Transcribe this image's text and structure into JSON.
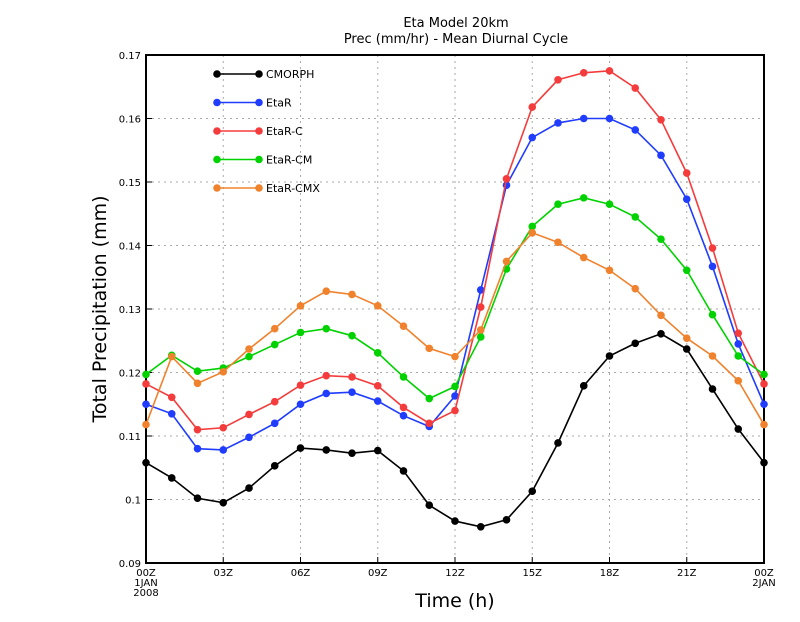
{
  "chart_data": {
    "type": "line",
    "title": "Eta Model 20km",
    "subtitle": "Prec (mm/hr) - Mean Diurnal Cycle",
    "xlabel": "Time (h)",
    "ylabel": "Total Precipitation (mm)",
    "x": [
      0,
      1,
      2,
      3,
      4,
      5,
      6,
      7,
      8,
      9,
      10,
      11,
      12,
      13,
      14,
      15,
      16,
      17,
      18,
      19,
      20,
      21,
      22,
      23,
      24
    ],
    "xlim": [
      0,
      24
    ],
    "ylim": [
      0.09,
      0.17
    ],
    "x_ticks": [
      {
        "value": 0,
        "label": "00Z",
        "sub1": "1JAN",
        "sub2": "2008"
      },
      {
        "value": 3,
        "label": "03Z"
      },
      {
        "value": 6,
        "label": "06Z"
      },
      {
        "value": 9,
        "label": "09Z"
      },
      {
        "value": 12,
        "label": "12Z"
      },
      {
        "value": 15,
        "label": "15Z"
      },
      {
        "value": 18,
        "label": "18Z"
      },
      {
        "value": 21,
        "label": "21Z"
      },
      {
        "value": 24,
        "label": "00Z",
        "sub1": "2JAN"
      }
    ],
    "y_ticks": [
      "0.09",
      "0.1",
      "0.11",
      "0.12",
      "0.13",
      "0.14",
      "0.15",
      "0.16",
      "0.17"
    ],
    "grid": true,
    "legend_position": "top-left",
    "series": [
      {
        "name": "CMORPH",
        "color": "#000000",
        "values": [
          0.1058,
          0.1034,
          0.1002,
          0.0995,
          0.1018,
          0.1053,
          0.1081,
          0.1078,
          0.1073,
          0.1077,
          0.1045,
          0.0991,
          0.0966,
          0.0957,
          0.0968,
          0.1013,
          0.1089,
          0.1179,
          0.1226,
          0.1246,
          0.1261,
          0.1237,
          0.1174,
          0.1111,
          0.1058
        ]
      },
      {
        "name": "EtaR",
        "color": "#1f3cff",
        "values": [
          0.115,
          0.1135,
          0.108,
          0.1078,
          0.1098,
          0.112,
          0.115,
          0.1167,
          0.1169,
          0.1155,
          0.1132,
          0.1115,
          0.1163,
          0.133,
          0.1495,
          0.157,
          0.1593,
          0.16,
          0.16,
          0.1582,
          0.1542,
          0.1473,
          0.1367,
          0.1245,
          0.115
        ]
      },
      {
        "name": "EtaR-C",
        "color": "#f53c3c",
        "values": [
          0.1182,
          0.1161,
          0.111,
          0.1113,
          0.1134,
          0.1154,
          0.118,
          0.1195,
          0.1193,
          0.1179,
          0.1145,
          0.112,
          0.114,
          0.1303,
          0.1505,
          0.1618,
          0.1661,
          0.1672,
          0.1675,
          0.1648,
          0.1598,
          0.1514,
          0.1396,
          0.1262,
          0.1182
        ]
      },
      {
        "name": "EtaR-CM",
        "color": "#00d200",
        "values": [
          0.1197,
          0.1227,
          0.1202,
          0.1207,
          0.1225,
          0.1244,
          0.1263,
          0.1269,
          0.1258,
          0.1231,
          0.1193,
          0.1159,
          0.1178,
          0.1256,
          0.1363,
          0.143,
          0.1465,
          0.1475,
          0.1465,
          0.1445,
          0.141,
          0.1361,
          0.1291,
          0.1226,
          0.1197
        ]
      },
      {
        "name": "EtaR-CMX",
        "color": "#f0822d",
        "values": [
          0.1118,
          0.1225,
          0.1183,
          0.1201,
          0.1237,
          0.1269,
          0.1305,
          0.1328,
          0.1323,
          0.1305,
          0.1273,
          0.1238,
          0.1225,
          0.1267,
          0.1375,
          0.142,
          0.1405,
          0.1381,
          0.1361,
          0.1332,
          0.129,
          0.1254,
          0.1226,
          0.1187,
          0.1118
        ]
      }
    ]
  }
}
